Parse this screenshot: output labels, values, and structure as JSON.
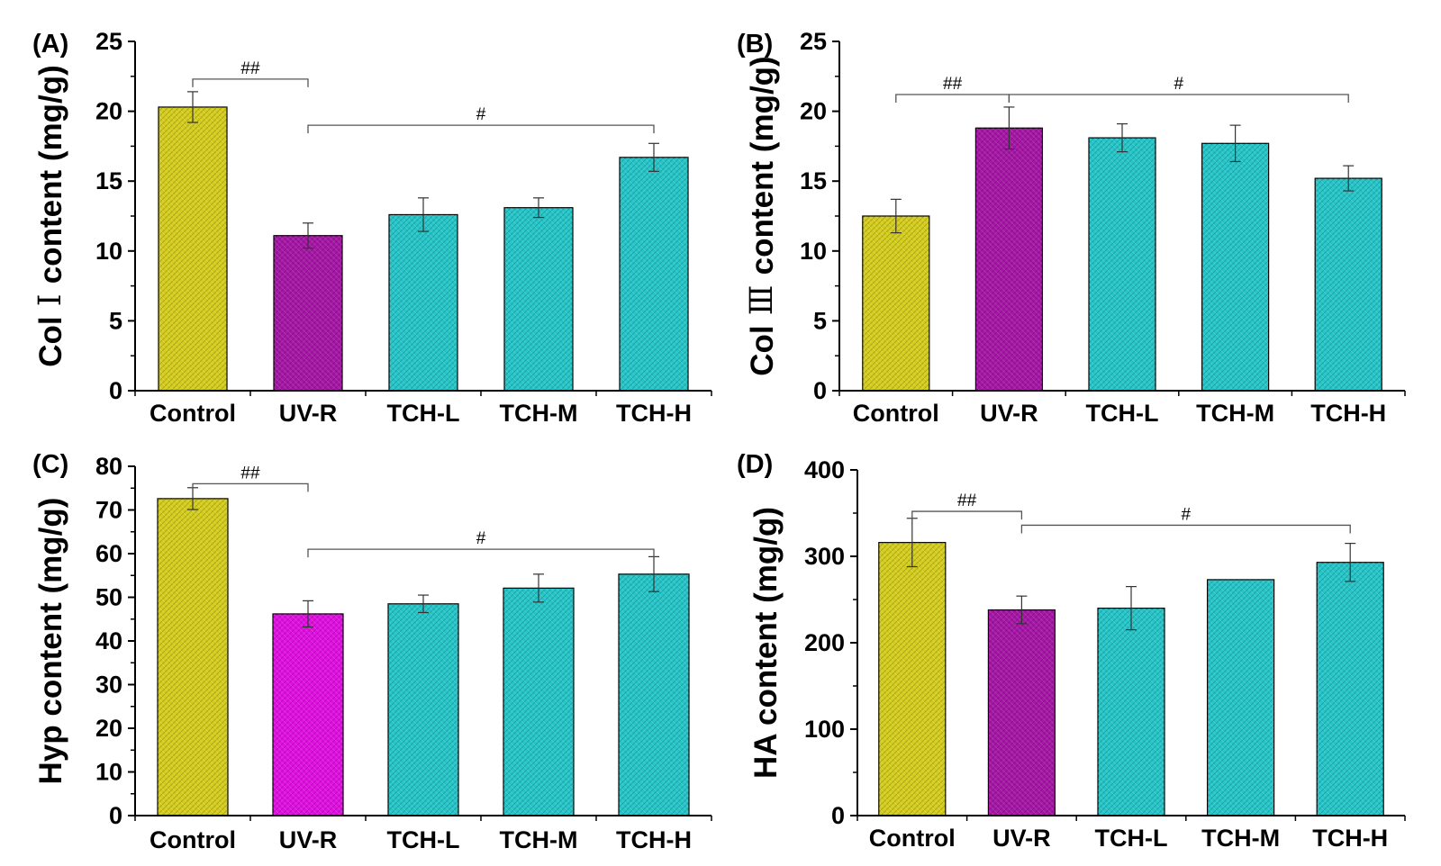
{
  "figure": {
    "colors": {
      "control": "#d4cc1e",
      "uvr_a": "#a616a6",
      "uvr_c": "#e010e0",
      "tch": "#26c5c8",
      "axis": "#000000",
      "sig_line": "#555555"
    }
  },
  "chart_data": [
    {
      "type": "bar",
      "panel": "(A)",
      "ylabel_prefix": "Col",
      "ylabel_roman": "Ⅰ",
      "ylabel_suffix": "content (mg/g)",
      "categories": [
        "Control",
        "UV-R",
        "TCH-L",
        "TCH-M",
        "TCH-H"
      ],
      "values": [
        20.3,
        11.1,
        12.6,
        13.1,
        16.7
      ],
      "errors": [
        1.1,
        0.9,
        1.2,
        0.7,
        1.0
      ],
      "bar_colors": [
        "control",
        "uvr_a",
        "tch",
        "tch",
        "tch"
      ],
      "ylim": [
        0,
        25
      ],
      "yticks": [
        0,
        5,
        10,
        15,
        20,
        25
      ],
      "yticks_labels": [
        "0",
        "5",
        "10",
        "15",
        "20",
        "25"
      ],
      "significance": [
        {
          "from": 0,
          "to": 1,
          "y": 22.3,
          "label": "##"
        },
        {
          "from": 1,
          "to": 4,
          "y": 19.0,
          "label": "#"
        }
      ]
    },
    {
      "type": "bar",
      "panel": "(B)",
      "ylabel_prefix": "Col",
      "ylabel_roman": "Ⅲ",
      "ylabel_suffix": "content (mg/g)",
      "categories": [
        "Control",
        "UV-R",
        "TCH-L",
        "TCH-M",
        "TCH-H"
      ],
      "values": [
        12.5,
        18.8,
        18.1,
        17.7,
        15.2
      ],
      "errors": [
        1.2,
        1.5,
        1.0,
        1.3,
        0.9
      ],
      "bar_colors": [
        "control",
        "uvr_a",
        "tch",
        "tch",
        "tch"
      ],
      "ylim": [
        0,
        25
      ],
      "yticks": [
        0,
        5,
        10,
        15,
        20,
        25
      ],
      "yticks_labels": [
        "0",
        "5",
        "10",
        "15",
        "20",
        "25"
      ],
      "significance": [
        {
          "from": 0,
          "to": 1,
          "y": 21.2,
          "label": "##"
        },
        {
          "from": 1,
          "to": 4,
          "y": 21.2,
          "label": "#"
        }
      ]
    },
    {
      "type": "bar",
      "panel": "(C)",
      "ylabel_prefix": "Hyp content (mg/g)",
      "ylabel_roman": "",
      "ylabel_suffix": "",
      "categories": [
        "Control",
        "UV-R",
        "TCH-L",
        "TCH-M",
        "TCH-H"
      ],
      "values": [
        72.6,
        46.2,
        48.5,
        52.1,
        55.3
      ],
      "errors": [
        2.5,
        3.0,
        2.0,
        3.2,
        4.0
      ],
      "bar_colors": [
        "control",
        "uvr_c",
        "tch",
        "tch",
        "tch"
      ],
      "ylim": [
        0,
        80
      ],
      "yticks": [
        0,
        10,
        20,
        30,
        40,
        50,
        60,
        70,
        80
      ],
      "yticks_labels": [
        "0",
        "10",
        "20",
        "30",
        "40",
        "50",
        "60",
        "70",
        "80"
      ],
      "significance": [
        {
          "from": 0,
          "to": 1,
          "y": 76.0,
          "label": "##"
        },
        {
          "from": 1,
          "to": 4,
          "y": 61.0,
          "label": "#"
        }
      ]
    },
    {
      "type": "bar",
      "panel": "(D)",
      "ylabel_prefix": "HA content (mg/g)",
      "ylabel_roman": "",
      "ylabel_suffix": "",
      "categories": [
        "Control",
        "UV-R",
        "TCH-L",
        "TCH-M",
        "TCH-H"
      ],
      "values": [
        316,
        238,
        240,
        273,
        293
      ],
      "errors": [
        28,
        16,
        25,
        0,
        22
      ],
      "bar_colors": [
        "control",
        "uvr_a",
        "tch",
        "tch",
        "tch"
      ],
      "ylim": [
        0,
        400
      ],
      "yticks": [
        0,
        100,
        200,
        300,
        400
      ],
      "yticks_labels": [
        "0",
        "100",
        "200",
        "300",
        "400"
      ],
      "significance": [
        {
          "from": 0,
          "to": 1,
          "y": 352,
          "label": "##"
        },
        {
          "from": 1,
          "to": 4,
          "y": 336,
          "label": "#"
        }
      ]
    }
  ]
}
